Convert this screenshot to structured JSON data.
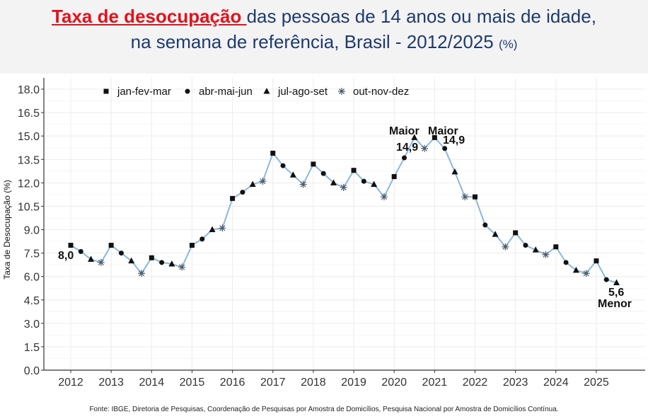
{
  "header": {
    "title_highlight": "Taxa de desocupação ",
    "title_rest": "das pessoas de 14 anos ou mais de idade,",
    "title_line2": "na semana de referência, Brasil - 2012/2025",
    "title_unit": "(%)"
  },
  "source": "Fonte: IBGE, Diretoria de Pesquisas, Coordenação de Pesquisas por Amostra de Domicílios, Pesquisa Nacional por Amostra de Domicílios Contínua.",
  "colors": {
    "line": "#8ab8dc",
    "marker": "#111111",
    "title_blue": "#1f3a6e",
    "title_red": "#e3121b"
  },
  "chart_data": {
    "type": "line",
    "ylabel": "Taxa de Desocupação (%)",
    "xlabel": "",
    "ylim": [
      0,
      18
    ],
    "yticks": [
      "0.0",
      "1.5",
      "3.0",
      "4.5",
      "6.0",
      "7.5",
      "9.0",
      "10.5",
      "12.0",
      "13.5",
      "15.0",
      "16.5",
      "18.0"
    ],
    "xticks": [
      "2012",
      "2013",
      "2014",
      "2015",
      "2016",
      "2017",
      "2018",
      "2019",
      "2020",
      "2021",
      "2022",
      "2023",
      "2024",
      "2025"
    ],
    "grid": true,
    "legend_position": "top",
    "legend": [
      {
        "label": "jan-fev-mar",
        "marker": "square"
      },
      {
        "label": "abr-mai-jun",
        "marker": "circle"
      },
      {
        "label": "jul-ago-set",
        "marker": "triangle"
      },
      {
        "label": "out-nov-dez",
        "marker": "asterisk"
      }
    ],
    "values": [
      8.0,
      7.6,
      7.1,
      6.9,
      8.0,
      7.5,
      7.0,
      6.2,
      7.2,
      6.9,
      6.8,
      6.6,
      8.0,
      8.4,
      9.0,
      9.1,
      11.0,
      11.4,
      11.9,
      12.1,
      13.9,
      13.1,
      12.5,
      11.9,
      13.2,
      12.6,
      12.0,
      11.7,
      12.8,
      12.1,
      11.9,
      11.1,
      12.4,
      13.6,
      14.9,
      14.2,
      14.9,
      14.2,
      12.7,
      11.1,
      11.1,
      9.3,
      8.7,
      7.9,
      8.8,
      8.0,
      7.7,
      7.4,
      7.9,
      6.9,
      6.4,
      6.2,
      7.0,
      5.8,
      5.6
    ],
    "annotations": [
      {
        "index": 0,
        "text": "8,0"
      },
      {
        "index": 34,
        "text": "Maior",
        "value_text": "14,9"
      },
      {
        "index": 36,
        "text": "Maior",
        "value_text": "14,9"
      },
      {
        "index": 54,
        "text": "Menor",
        "value_text": "5,6"
      }
    ]
  }
}
